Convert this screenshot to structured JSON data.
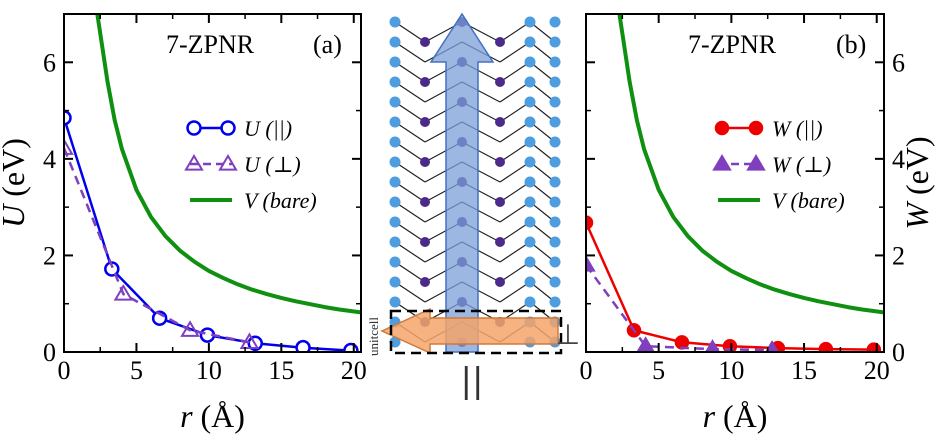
{
  "chart_data": [
    {
      "panel": "a",
      "type": "line",
      "title": "7-ZPNR",
      "panel_label": "(a)",
      "xlabel_var": "r",
      "xlabel_unit": "(Å)",
      "ylabel_var": "U",
      "ylabel_unit": "(eV)",
      "xlim": [
        0,
        20.5
      ],
      "ylim": [
        0,
        7
      ],
      "xticks": [
        0,
        5,
        10,
        15,
        20
      ],
      "yticks": [
        0,
        2,
        4,
        6
      ],
      "series": [
        {
          "name": "U (||)",
          "color": "#0000ee",
          "style": "solid",
          "marker": "circle-open",
          "x": [
            0,
            3.3,
            6.6,
            9.9,
            13.2,
            16.5,
            19.8
          ],
          "y": [
            4.85,
            1.72,
            0.7,
            0.35,
            0.18,
            0.09,
            0.03
          ]
        },
        {
          "name": "U (⊥)",
          "color": "#7f3fbf",
          "style": "dashed",
          "marker": "triangle-open",
          "x": [
            0,
            4.1,
            8.7,
            12.8
          ],
          "y": [
            4.22,
            1.2,
            0.45,
            0.2
          ]
        },
        {
          "name": "V (bare)",
          "color": "#109010",
          "style": "solid",
          "marker": "none",
          "x": [
            2.3,
            2.6,
            3,
            3.5,
            4,
            5,
            6,
            7,
            8,
            9,
            10,
            11,
            12,
            13,
            14,
            15,
            16,
            17,
            18,
            19,
            20.5
          ],
          "y": [
            7.0,
            6.4,
            5.6,
            4.8,
            4.2,
            3.36,
            2.8,
            2.4,
            2.1,
            1.87,
            1.68,
            1.53,
            1.4,
            1.29,
            1.2,
            1.12,
            1.05,
            0.99,
            0.93,
            0.88,
            0.82
          ]
        }
      ]
    },
    {
      "panel": "b",
      "type": "line",
      "title": "7-ZPNR",
      "panel_label": "(b)",
      "xlabel_var": "r",
      "xlabel_unit": "(Å)",
      "ylabel_var": "W",
      "ylabel_unit": "(eV)",
      "xlim": [
        0,
        20.5
      ],
      "ylim": [
        0,
        7
      ],
      "xticks": [
        0,
        5,
        10,
        15,
        20
      ],
      "yticks": [
        0,
        2,
        4,
        6
      ],
      "series": [
        {
          "name": "W (||)",
          "color": "#ee0000",
          "style": "solid",
          "marker": "circle-filled",
          "x": [
            0,
            3.3,
            6.6,
            9.9,
            13.2,
            16.5,
            19.8
          ],
          "y": [
            2.68,
            0.45,
            0.2,
            0.12,
            0.08,
            0.06,
            0.05
          ]
        },
        {
          "name": "W (⊥)",
          "color": "#7f3fbf",
          "style": "dashed",
          "marker": "triangle-filled",
          "x": [
            0,
            4.1,
            8.7,
            12.8
          ],
          "y": [
            1.8,
            0.12,
            0.06,
            0.04
          ]
        },
        {
          "name": "V (bare)",
          "color": "#109010",
          "style": "solid",
          "marker": "none",
          "x": [
            2.3,
            2.6,
            3,
            3.5,
            4,
            5,
            6,
            7,
            8,
            9,
            10,
            11,
            12,
            13,
            14,
            15,
            16,
            17,
            18,
            19,
            20.5
          ],
          "y": [
            7.0,
            6.4,
            5.6,
            4.8,
            4.2,
            3.36,
            2.8,
            2.4,
            2.1,
            1.87,
            1.68,
            1.53,
            1.4,
            1.29,
            1.2,
            1.12,
            1.05,
            0.99,
            0.93,
            0.88,
            0.82
          ]
        }
      ]
    }
  ],
  "structure": {
    "parallel_label": "||",
    "perp_label": "⊥",
    "unitcell_label": "unitcell",
    "atom_color_edge": "#4d9de0",
    "atom_color_core": "#4b2a8a",
    "arrow_up_color": "#7b9fd8",
    "arrow_side_color": "#f4a46a"
  }
}
